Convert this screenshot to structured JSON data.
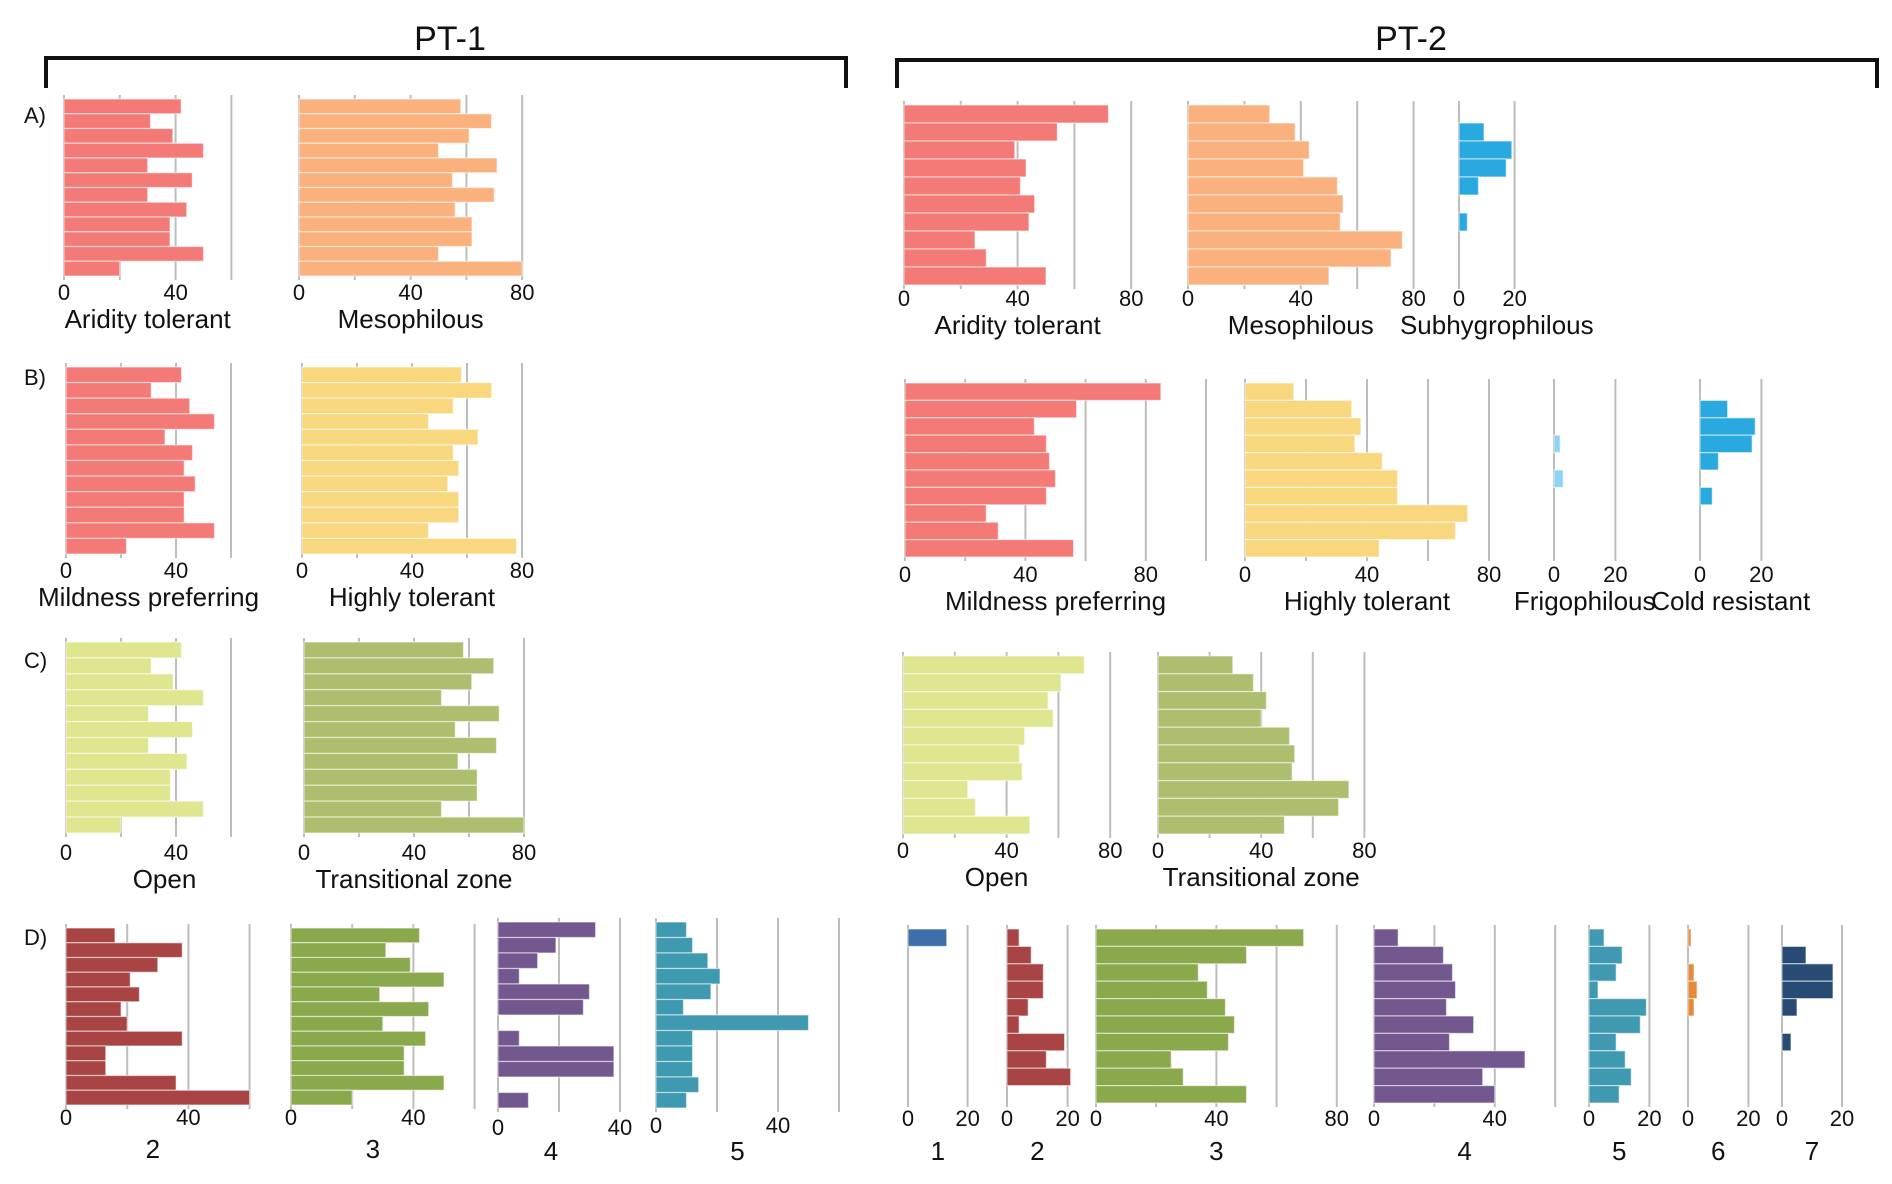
{
  "groups": [
    {
      "id": "PT-1",
      "title": "PT-1"
    },
    {
      "id": "PT-2",
      "title": "PT-2"
    }
  ],
  "row_labels": [
    "A)",
    "B)",
    "C)",
    "D)"
  ],
  "colors": {
    "aridity": "#f47a78",
    "mesophilous": "#fab17e",
    "subhygrophilous": "#29a9e0",
    "mildness": "#f47a78",
    "highly_tolerant": "#f8d77f",
    "frigophilous": "#8fd3f3",
    "cold_resistant": "#29a9e0",
    "open": "#dfe68f",
    "transitional": "#acbf6e",
    "d1": "#3f6faa",
    "d2": "#a94444",
    "d3": "#8aa84c",
    "d4": "#735890",
    "d5": "#3f99b0",
    "d6": "#e48a3b",
    "d7": "#284b75"
  },
  "chart_data": [
    {
      "type": "bar",
      "orientation": "horizontal",
      "group": "PT-1",
      "row": "A",
      "title": "Aridity tolerant",
      "xlim": [
        0,
        60
      ],
      "grid_step": 20,
      "tick_labels": [
        "0",
        "40"
      ],
      "color_key": "aridity",
      "values": [
        42,
        31,
        39,
        50,
        30,
        46,
        30,
        44,
        38,
        38,
        50,
        20
      ]
    },
    {
      "type": "bar",
      "orientation": "horizontal",
      "group": "PT-1",
      "row": "A",
      "title": "Mesophilous",
      "xlim": [
        0,
        80
      ],
      "grid_step": 20,
      "tick_labels": [
        "0",
        "40",
        "80"
      ],
      "color_key": "mesophilous",
      "values": [
        58,
        69,
        61,
        50,
        71,
        55,
        70,
        56,
        62,
        62,
        50,
        80
      ]
    },
    {
      "type": "bar",
      "orientation": "horizontal",
      "group": "PT-1",
      "row": "B",
      "title": "Mildness preferring",
      "xlim": [
        0,
        60
      ],
      "grid_step": 20,
      "tick_labels": [
        "0",
        "40"
      ],
      "color_key": "mildness",
      "values": [
        42,
        31,
        45,
        54,
        36,
        46,
        43,
        47,
        43,
        43,
        54,
        22
      ]
    },
    {
      "type": "bar",
      "orientation": "horizontal",
      "group": "PT-1",
      "row": "B",
      "title": "Highly tolerant",
      "xlim": [
        0,
        80
      ],
      "grid_step": 20,
      "tick_labels": [
        "0",
        "40",
        "80"
      ],
      "color_key": "highly_tolerant",
      "values": [
        58,
        69,
        55,
        46,
        64,
        55,
        57,
        53,
        57,
        57,
        46,
        78
      ]
    },
    {
      "type": "bar",
      "orientation": "horizontal",
      "group": "PT-1",
      "row": "C",
      "title": "Open",
      "xlim": [
        0,
        60
      ],
      "grid_step": 20,
      "tick_labels": [
        "0",
        "40"
      ],
      "color_key": "open",
      "values": [
        42,
        31,
        39,
        50,
        30,
        46,
        30,
        44,
        38,
        38,
        50,
        20
      ]
    },
    {
      "type": "bar",
      "orientation": "horizontal",
      "group": "PT-1",
      "row": "C",
      "title": "Transitional zone",
      "xlim": [
        0,
        80
      ],
      "grid_step": 20,
      "tick_labels": [
        "0",
        "40",
        "80"
      ],
      "color_key": "transitional",
      "values": [
        58,
        69,
        61,
        50,
        71,
        55,
        70,
        56,
        63,
        63,
        50,
        80
      ]
    },
    {
      "type": "bar",
      "orientation": "horizontal",
      "group": "PT-1",
      "row": "D",
      "title": "2",
      "xlim": [
        0,
        60
      ],
      "grid_step": 20,
      "tick_labels": [
        "0",
        "40"
      ],
      "color_key": "d2",
      "values": [
        16,
        38,
        30,
        21,
        24,
        18,
        20,
        38,
        13,
        13,
        36,
        60
      ]
    },
    {
      "type": "bar",
      "orientation": "horizontal",
      "group": "PT-1",
      "row": "D",
      "title": "3",
      "xlim": [
        0,
        60
      ],
      "grid_step": 20,
      "tick_labels": [
        "0",
        "40"
      ],
      "color_key": "d3",
      "values": [
        42,
        31,
        39,
        50,
        29,
        45,
        30,
        44,
        37,
        37,
        50,
        20
      ]
    },
    {
      "type": "bar",
      "orientation": "horizontal",
      "group": "PT-1",
      "row": "D",
      "title": "4",
      "xlim": [
        0,
        40
      ],
      "grid_step": 20,
      "tick_labels": [
        "0",
        "40"
      ],
      "color_key": "d4",
      "values": [
        32,
        19,
        13,
        7,
        30,
        28,
        0,
        7,
        38,
        38,
        0,
        10
      ]
    },
    {
      "type": "bar",
      "orientation": "horizontal",
      "group": "PT-1",
      "row": "D",
      "title": "5",
      "xlim": [
        0,
        60
      ],
      "grid_step": 20,
      "tick_labels": [
        "0",
        "40"
      ],
      "color_key": "d5",
      "values": [
        10,
        12,
        17,
        21,
        18,
        9,
        50,
        12,
        12,
        12,
        14,
        10
      ]
    },
    {
      "type": "bar",
      "orientation": "horizontal",
      "group": "PT-2",
      "row": "A",
      "title": "Aridity tolerant",
      "xlim": [
        0,
        80
      ],
      "grid_step": 20,
      "tick_labels": [
        "0",
        "40",
        "80"
      ],
      "color_key": "aridity",
      "values": [
        72,
        54,
        39,
        43,
        41,
        46,
        44,
        25,
        29,
        50
      ]
    },
    {
      "type": "bar",
      "orientation": "horizontal",
      "group": "PT-2",
      "row": "A",
      "title": "Mesophilous",
      "xlim": [
        0,
        80
      ],
      "grid_step": 20,
      "tick_labels": [
        "0",
        "40",
        "80"
      ],
      "color_key": "mesophilous",
      "values": [
        29,
        38,
        43,
        41,
        53,
        55,
        54,
        76,
        72,
        50
      ]
    },
    {
      "type": "bar",
      "orientation": "horizontal",
      "group": "PT-2",
      "row": "A",
      "title": "Subhygrophilous",
      "xlim": [
        0,
        20
      ],
      "grid_step": 20,
      "tick_labels": [
        "0",
        "20"
      ],
      "color_key": "subhygrophilous",
      "values": [
        0,
        9,
        19,
        17,
        7,
        0,
        3,
        0,
        0,
        0
      ]
    },
    {
      "type": "bar",
      "orientation": "horizontal",
      "group": "PT-2",
      "row": "B",
      "title": "Mildness preferring",
      "xlim": [
        0,
        100
      ],
      "grid_step": 20,
      "tick_labels": [
        "0",
        "40",
        "80"
      ],
      "color_key": "mildness",
      "values": [
        85,
        57,
        43,
        47,
        48,
        50,
        47,
        27,
        31,
        56
      ]
    },
    {
      "type": "bar",
      "orientation": "horizontal",
      "group": "PT-2",
      "row": "B",
      "title": "Highly tolerant",
      "xlim": [
        0,
        80
      ],
      "grid_step": 20,
      "tick_labels": [
        "0",
        "40",
        "80"
      ],
      "color_key": "highly_tolerant",
      "values": [
        16,
        35,
        38,
        36,
        45,
        50,
        50,
        73,
        69,
        44
      ]
    },
    {
      "type": "bar",
      "orientation": "horizontal",
      "group": "PT-2",
      "row": "B",
      "title": "Frigophilous",
      "xlim": [
        0,
        20
      ],
      "grid_step": 20,
      "tick_labels": [
        "0",
        "20"
      ],
      "color_key": "frigophilous",
      "values": [
        0,
        0,
        0,
        2,
        0,
        3,
        0,
        0,
        0,
        0
      ]
    },
    {
      "type": "bar",
      "orientation": "horizontal",
      "group": "PT-2",
      "row": "B",
      "title": "Cold resistant",
      "xlim": [
        0,
        20
      ],
      "grid_step": 20,
      "tick_labels": [
        "0",
        "20"
      ],
      "color_key": "cold_resistant",
      "values": [
        0,
        9,
        18,
        17,
        6,
        0,
        4,
        0,
        0,
        0
      ]
    },
    {
      "type": "bar",
      "orientation": "horizontal",
      "group": "PT-2",
      "row": "C",
      "title": "Open",
      "xlim": [
        0,
        80
      ],
      "grid_step": 20,
      "tick_labels": [
        "0",
        "40",
        "80"
      ],
      "color_key": "open",
      "values": [
        70,
        61,
        56,
        58,
        47,
        45,
        46,
        25,
        28,
        49
      ]
    },
    {
      "type": "bar",
      "orientation": "horizontal",
      "group": "PT-2",
      "row": "C",
      "title": "Transitional zone",
      "xlim": [
        0,
        80
      ],
      "grid_step": 20,
      "tick_labels": [
        "0",
        "40",
        "80"
      ],
      "color_key": "transitional",
      "values": [
        29,
        37,
        42,
        40,
        51,
        53,
        52,
        74,
        70,
        49
      ]
    },
    {
      "type": "bar",
      "orientation": "horizontal",
      "group": "PT-2",
      "row": "D",
      "title": "1",
      "xlim": [
        0,
        20
      ],
      "grid_step": 20,
      "tick_labels": [
        "0",
        "20"
      ],
      "color_key": "d1",
      "values": [
        13,
        0,
        0,
        0,
        0,
        0,
        0,
        0,
        0,
        0
      ]
    },
    {
      "type": "bar",
      "orientation": "horizontal",
      "group": "PT-2",
      "row": "D",
      "title": "2",
      "xlim": [
        0,
        20
      ],
      "grid_step": 20,
      "tick_labels": [
        "0",
        "20"
      ],
      "color_key": "d2",
      "values": [
        4,
        8,
        12,
        12,
        7,
        4,
        19,
        13,
        21,
        0
      ]
    },
    {
      "type": "bar",
      "orientation": "horizontal",
      "group": "PT-2",
      "row": "D",
      "title": "3",
      "xlim": [
        0,
        80
      ],
      "grid_step": 20,
      "tick_labels": [
        "0",
        "40",
        "80"
      ],
      "color_key": "d3",
      "values": [
        69,
        50,
        34,
        37,
        43,
        46,
        44,
        25,
        29,
        50
      ]
    },
    {
      "type": "bar",
      "orientation": "horizontal",
      "group": "PT-2",
      "row": "D",
      "title": "4",
      "xlim": [
        0,
        60
      ],
      "grid_step": 20,
      "tick_labels": [
        "0",
        "40"
      ],
      "color_key": "d4",
      "values": [
        8,
        23,
        26,
        27,
        24,
        33,
        25,
        50,
        36,
        40
      ]
    },
    {
      "type": "bar",
      "orientation": "horizontal",
      "group": "PT-2",
      "row": "D",
      "title": "5",
      "xlim": [
        0,
        20
      ],
      "grid_step": 20,
      "tick_labels": [
        "0",
        "20"
      ],
      "color_key": "d5",
      "values": [
        5,
        11,
        9,
        3,
        19,
        17,
        9,
        12,
        14,
        10
      ]
    },
    {
      "type": "bar",
      "orientation": "horizontal",
      "group": "PT-2",
      "row": "D",
      "title": "6",
      "xlim": [
        0,
        20
      ],
      "grid_step": 20,
      "tick_labels": [
        "0",
        "20"
      ],
      "color_key": "d6",
      "values": [
        1,
        0,
        2,
        3,
        2,
        0,
        0,
        0,
        0,
        0
      ]
    },
    {
      "type": "bar",
      "orientation": "horizontal",
      "group": "PT-2",
      "row": "D",
      "title": "7",
      "xlim": [
        0,
        20
      ],
      "grid_step": 20,
      "tick_labels": [
        "0",
        "20"
      ],
      "color_key": "d7",
      "values": [
        0,
        8,
        17,
        17,
        5,
        0,
        3,
        0,
        0,
        0
      ]
    }
  ]
}
